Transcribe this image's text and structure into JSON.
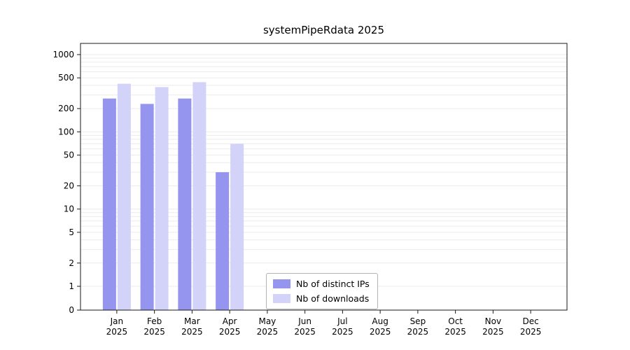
{
  "chart_data": {
    "type": "bar",
    "title": "systemPipeRdata 2025",
    "scale": "log",
    "grid": true,
    "legend_position": "lower center",
    "year": "2025",
    "categories": [
      "Jan",
      "Feb",
      "Mar",
      "Apr",
      "May",
      "Jun",
      "Jul",
      "Aug",
      "Sep",
      "Oct",
      "Nov",
      "Dec"
    ],
    "yticks": [
      0,
      1,
      2,
      5,
      10,
      20,
      50,
      100,
      200,
      500,
      1000
    ],
    "ylim": [
      0,
      1000
    ],
    "series": [
      {
        "name": "Nb of distinct IPs",
        "color": "#9595ef",
        "values": [
          270,
          230,
          270,
          30,
          0,
          0,
          0,
          0,
          0,
          0,
          0,
          0
        ]
      },
      {
        "name": "Nb of downloads",
        "color": "#d3d3f9",
        "values": [
          420,
          380,
          440,
          70,
          0,
          0,
          0,
          0,
          0,
          0,
          0,
          0
        ]
      }
    ]
  }
}
